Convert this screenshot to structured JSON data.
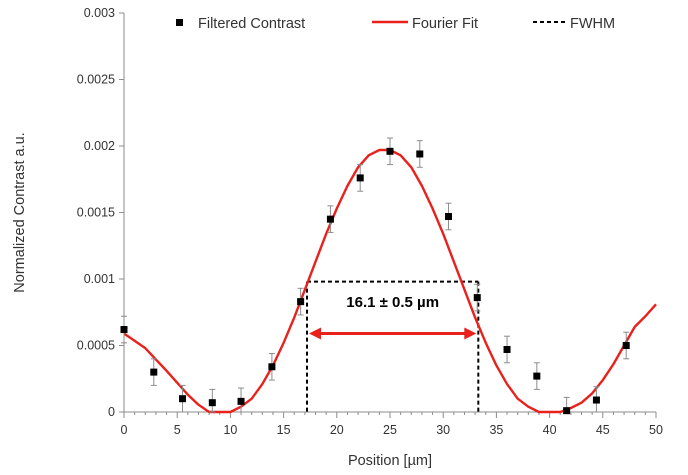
{
  "chart_data": {
    "type": "scatter",
    "xlabel": "Position [µm]",
    "ylabel": "Normalized Contrast a.u.",
    "xlim": [
      0,
      50
    ],
    "ylim": [
      0,
      0.003
    ],
    "x_ticks": [
      "0",
      "5",
      "10",
      "15",
      "20",
      "25",
      "30",
      "35",
      "40",
      "45",
      "50"
    ],
    "y_ticks": [
      "0",
      "0.0005",
      "0.001",
      "0.0015",
      "0.002",
      "0.0025",
      "0.003"
    ],
    "x_tick_values": [
      0,
      5,
      10,
      15,
      20,
      25,
      30,
      35,
      40,
      45,
      50
    ],
    "y_tick_values": [
      0,
      0.0005,
      0.001,
      0.0015,
      0.002,
      0.0025,
      0.003
    ],
    "grid": false,
    "legend_position": "top",
    "series": [
      {
        "name": "Filtered Contrast",
        "kind": "points",
        "color": "#000000",
        "x": [
          0,
          2.8,
          5.5,
          8.3,
          11.0,
          13.9,
          16.6,
          19.4,
          22.2,
          25.0,
          27.8,
          30.5,
          33.2,
          36.0,
          38.8,
          41.6,
          44.4,
          47.2
        ],
        "y": [
          0.00062,
          0.0003,
          0.0001,
          7e-05,
          8e-05,
          0.00034,
          0.00083,
          0.00145,
          0.00176,
          0.00196,
          0.00194,
          0.00147,
          0.00086,
          0.00047,
          0.00027,
          1e-05,
          9e-05,
          0.0005
        ],
        "yerr": [
          0.0001,
          0.0001,
          0.0001,
          0.0001,
          0.0001,
          0.0001,
          0.0001,
          0.0001,
          0.0001,
          0.0001,
          0.0001,
          0.0001,
          0.0001,
          0.0001,
          0.0001,
          0.0001,
          0.0001,
          0.0001
        ]
      },
      {
        "name": "Fourier Fit",
        "kind": "line",
        "color": "#e8211c",
        "x": [
          0,
          2,
          4,
          6,
          7,
          8,
          9,
          10,
          11,
          12,
          13,
          14,
          15,
          16,
          17,
          18,
          19,
          20,
          21,
          22,
          23,
          24,
          25,
          26,
          27,
          28,
          29,
          30,
          31,
          32,
          33,
          34,
          35,
          36,
          37,
          38,
          39,
          40,
          41,
          42,
          43,
          44,
          45,
          46,
          47,
          48,
          49,
          50
        ],
        "y": [
          0.00059,
          0.00048,
          0.00031,
          0.00013,
          5.5e-05,
          0.0,
          0.0,
          0.0,
          4e-05,
          0.0001,
          0.00021,
          0.00035,
          0.00052,
          0.00071,
          0.00092,
          0.00113,
          0.00134,
          0.00153,
          0.0017,
          0.00184,
          0.00193,
          0.00197,
          0.00197,
          0.00193,
          0.00184,
          0.0017,
          0.00153,
          0.00134,
          0.00113,
          0.00092,
          0.00071,
          0.00052,
          0.00035,
          0.00021,
          0.0001,
          4e-05,
          0.0,
          0.0,
          0.0,
          3e-05,
          7e-05,
          0.00014,
          0.00024,
          0.00036,
          0.0005,
          0.00064,
          0.00072,
          0.00081
        ]
      },
      {
        "name": "FWHM",
        "kind": "dashed-box",
        "color": "#000000",
        "x1": 17.2,
        "x2": 33.3,
        "y": 0.00098
      }
    ],
    "annotations": [
      {
        "text": "16.1 ± 0.5 µm",
        "x": 25.25,
        "y": 0.00079
      }
    ],
    "arrow": {
      "x1": 17.2,
      "x2": 33.3,
      "y": 0.00059,
      "color": "#e8211c"
    }
  }
}
